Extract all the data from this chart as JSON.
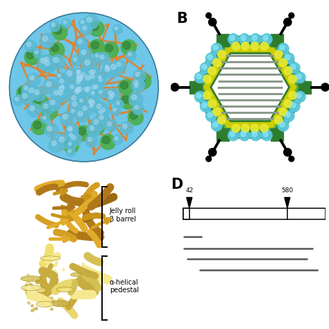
{
  "bg_color": "#ffffff",
  "label_B": "B",
  "label_D": "D",
  "label_jelly_roll": "Jelly roll\nβ barrel",
  "label_alpha_helical": "α-helical\npedestal",
  "sphere_blue": "#6EC6E8",
  "sphere_orange": "#E87E20",
  "sphere_green": "#4CAF50",
  "hex_green_outer": "#2E7D2E",
  "hex_green_inner": "#4CAF50",
  "hex_yellow": "#CCCC00",
  "hex_cyan": "#5BC8DC",
  "hex_gray_lines": "#8A9A8A",
  "spike_black": "#111111",
  "protein_gold": "#C8941A",
  "protein_brown": "#9B6914",
  "protein_yellow": "#E8D870",
  "protein_lt_yellow": "#F0E8A0"
}
